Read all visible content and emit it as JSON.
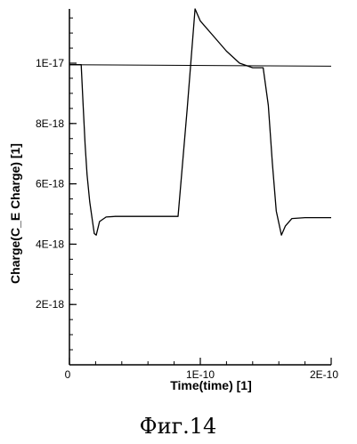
{
  "chart_data": {
    "type": "line",
    "title": "",
    "xlabel": "Time(time) [1]",
    "ylabel": "Charge(C_E Charge) [1]",
    "xlim": [
      0,
      2e-10
    ],
    "ylim": [
      0,
      1.18e-17
    ],
    "x_ticks": [
      {
        "value": 0,
        "label": "0"
      },
      {
        "value": 1e-10,
        "label": "1E-10"
      },
      {
        "value": 2e-10,
        "label": "2E-10"
      }
    ],
    "y_ticks": [
      {
        "value": 2e-18,
        "label": "2E-18"
      },
      {
        "value": 4e-18,
        "label": "4E-18"
      },
      {
        "value": 6e-18,
        "label": "6E-18"
      },
      {
        "value": 8e-18,
        "label": "8E-18"
      },
      {
        "value": 1e-17,
        "label": "1E-17"
      }
    ],
    "grid": false,
    "series": [
      {
        "x": [
          0,
          2e-10
        ],
        "y": [
          9.95e-18,
          9.9e-18
        ]
      },
      {
        "x": [
          0,
          9e-12,
          1.05e-11,
          1.2e-11,
          1.35e-11,
          1.55e-11,
          1.75e-11,
          1.9e-11,
          2.05e-11,
          2.3e-11,
          2.8e-11,
          3.5e-11,
          5e-11,
          6.8e-11,
          8.3e-11,
          9e-11,
          9.6e-11,
          1e-10,
          1.1e-10,
          1.2e-10,
          1.3e-10,
          1.4e-10,
          1.48e-10,
          1.52e-10,
          1.55e-10,
          1.58e-10,
          1.62e-10,
          1.65e-10,
          1.7e-10,
          1.8e-10,
          2e-10
        ],
        "y": [
          9.95e-18,
          9.95e-18,
          8.6e-18,
          7.3e-18,
          6.3e-18,
          5.4e-18,
          4.8e-18,
          4.35e-18,
          4.3e-18,
          4.75e-18,
          4.9e-18,
          4.92e-18,
          4.92e-18,
          4.92e-18,
          4.92e-18,
          8.5e-18,
          1.18e-17,
          1.14e-17,
          1.09e-17,
          1.04e-17,
          1e-17,
          9.85e-18,
          9.85e-18,
          8.6e-18,
          6.7e-18,
          5.1e-18,
          4.3e-18,
          4.6e-18,
          4.85e-18,
          4.88e-18,
          4.88e-18
        ]
      }
    ]
  },
  "caption": "Фиг.14"
}
